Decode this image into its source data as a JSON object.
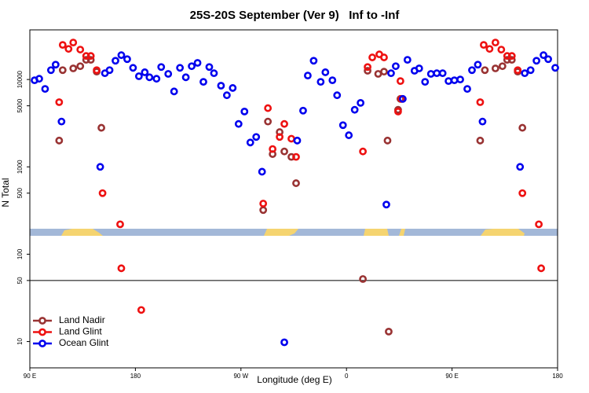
{
  "chart_data": {
    "type": "scatter",
    "title": "25S-20S September (Ver 9)   Inf to -Inf",
    "x_label": "Longitude (deg E)",
    "y_label": "N Total",
    "xlim": [
      90,
      540
    ],
    "xticks": [
      {
        "value": 90,
        "label": "90 E"
      },
      180,
      {
        "value": 270,
        "label": "90 W"
      },
      {
        "value": 360,
        "label": "0"
      },
      {
        "value": 450,
        "label": "90 E"
      },
      {
        "value": 540,
        "label": "180"
      }
    ],
    "ylim": [
      5,
      37000
    ],
    "yticks": [
      10,
      50,
      100,
      500,
      1000,
      5000,
      10000
    ],
    "log_y": true,
    "reference_line": 50,
    "legend": "bottom-left",
    "series": [
      {
        "name": "Land Nadir",
        "color": "#993333",
        "x": [
          115,
          118,
          127,
          133,
          138,
          142,
          147,
          151,
          293,
          289,
          297,
          303,
          307,
          313,
          317,
          374,
          378,
          387,
          392,
          395,
          404,
          396,
          406,
          474,
          478,
          487,
          493,
          497,
          501,
          506,
          510
        ],
        "values": [
          2000,
          12800,
          13400,
          14200,
          16800,
          16800,
          12300,
          2800,
          3300,
          320,
          1400,
          2500,
          1500,
          1300,
          650,
          52,
          12600,
          11600,
          12300,
          2000,
          4500,
          13,
          6000,
          2000,
          12800,
          13400,
          14200,
          16800,
          16800,
          12300,
          2800
        ]
      },
      {
        "name": "Land Glint",
        "color": "#ee1111",
        "x": [
          115,
          118,
          123,
          127,
          133,
          138,
          142,
          147,
          152,
          167,
          168,
          293,
          289,
          297,
          303,
          307,
          313,
          317,
          185,
          378,
          374,
          382,
          388,
          392,
          404,
          406,
          407,
          477,
          482,
          487,
          492,
          497,
          501,
          506,
          510,
          524,
          526,
          474
        ],
        "values": [
          5500,
          24900,
          22400,
          26500,
          22000,
          18600,
          18600,
          12800,
          500,
          220,
          69,
          4700,
          380,
          1600,
          2200,
          3100,
          2100,
          1300,
          23,
          13900,
          1500,
          17900,
          19400,
          17900,
          4300,
          9600,
          6000,
          24900,
          22400,
          26500,
          22000,
          18600,
          18600,
          12800,
          500,
          220,
          69,
          5500
        ]
      },
      {
        "name": "Ocean Glint",
        "color": "#0000ee",
        "x": [
          94,
          98,
          103,
          108,
          112,
          117,
          150,
          154,
          158,
          163,
          168,
          173,
          178,
          183,
          188,
          192,
          198,
          202,
          208,
          213,
          218,
          223,
          228,
          233,
          238,
          243,
          247,
          253,
          258,
          263,
          268,
          273,
          278,
          283,
          288,
          318,
          323,
          327,
          332,
          338,
          342,
          348,
          352,
          357,
          362,
          367,
          372,
          394,
          398,
          402,
          408,
          412,
          418,
          422,
          427,
          432,
          437,
          442,
          447,
          452,
          457,
          463,
          467,
          472,
          476,
          508,
          512,
          517,
          522,
          528,
          532,
          538,
          307
        ],
        "values": [
          9800,
          10200,
          7800,
          12800,
          14800,
          3300,
          1000,
          11800,
          12800,
          16400,
          19000,
          17100,
          13600,
          10900,
          12100,
          10600,
          10200,
          13900,
          11600,
          7300,
          13600,
          10600,
          14200,
          15500,
          9400,
          13900,
          11800,
          8500,
          6600,
          8000,
          3100,
          4300,
          1900,
          2200,
          880,
          2000,
          4400,
          11100,
          16400,
          9400,
          12100,
          9800,
          6600,
          3000,
          2300,
          4500,
          5400,
          370,
          11800,
          14200,
          6000,
          16800,
          12600,
          13400,
          9400,
          11600,
          11800,
          11800,
          9600,
          9800,
          10000,
          7800,
          12800,
          14800,
          3300,
          1000,
          11800,
          12800,
          16400,
          19000,
          17100,
          13600,
          9.8
        ]
      }
    ]
  }
}
